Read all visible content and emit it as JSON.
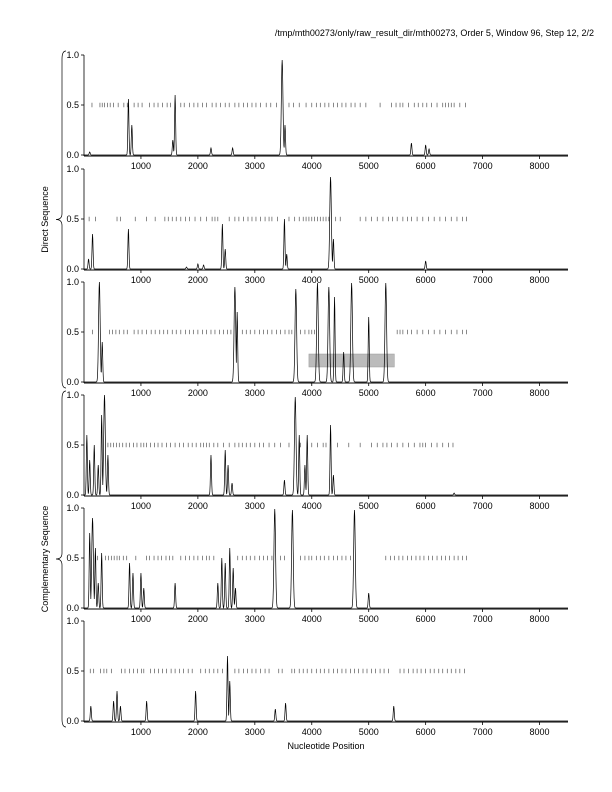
{
  "header": {
    "text": "/tmp/mth00273/only/raw_result_dir/mth00273, Order 5, Window 96, Step 12, 2/2"
  },
  "chart_data": {
    "type": "line",
    "title": "/tmp/mth00273/only/raw_result_dir/mth00273, Order 5, Window 96, Step 12, 2/2",
    "xlabel": "Nucleotide Position",
    "group_labels": [
      "Direct Sequence",
      "Complementary Sequence"
    ],
    "xlim": [
      0,
      8500
    ],
    "ylim": [
      0,
      1.0
    ],
    "x_ticks": [
      1000,
      2000,
      3000,
      4000,
      5000,
      6000,
      7000,
      8000
    ],
    "x_tick_labels": [
      "1000",
      "2000",
      "3000",
      "4000",
      "5000",
      "6000",
      "7000",
      "8000"
    ],
    "y_ticks": [
      0,
      0.5,
      1.0
    ],
    "y_tick_labels": [
      "0.0",
      "0.5",
      "1.0"
    ],
    "stop_codon_level": 0.5,
    "panels": [
      {
        "group": "Direct Sequence",
        "frame": 1,
        "peaks": [
          [
            100,
            0.03
          ],
          [
            780,
            0.56
          ],
          [
            840,
            0.3
          ],
          [
            1600,
            0.6
          ],
          [
            1560,
            0.15
          ],
          [
            2230,
            0.07
          ],
          [
            2610,
            0.07
          ],
          [
            3480,
            0.95
          ],
          [
            3530,
            0.3
          ],
          [
            5750,
            0.12
          ],
          [
            6000,
            0.1
          ],
          [
            6060,
            0.06
          ]
        ],
        "stop_codons": [
          140,
          280,
          320,
          360,
          410,
          460,
          520,
          600,
          700,
          760,
          880,
          950,
          1020,
          1150,
          1230,
          1300,
          1380,
          1460,
          1520,
          1700,
          1760,
          1850,
          1930,
          2000,
          2080,
          2150,
          2250,
          2320,
          2400,
          2480,
          2550,
          2650,
          2720,
          2800,
          2870,
          2950,
          3020,
          3100,
          3200,
          3280,
          3380,
          3600,
          3680,
          3780,
          3900,
          4000,
          4080,
          4150,
          4230,
          4300,
          4380,
          4450,
          4530,
          4600,
          4690,
          4760,
          4850,
          4950,
          5200,
          5400,
          5480,
          5550,
          5600,
          5700,
          5800,
          5870,
          5950,
          6020,
          6100,
          6200,
          6300,
          6350,
          6400,
          6450,
          6500,
          6600,
          6700
        ],
        "orfs": []
      },
      {
        "group": "Direct Sequence",
        "frame": 2,
        "peaks": [
          [
            80,
            0.1
          ],
          [
            150,
            0.35
          ],
          [
            780,
            0.4
          ],
          [
            1800,
            0.02
          ],
          [
            2000,
            0.05
          ],
          [
            2100,
            0.04
          ],
          [
            2430,
            0.45
          ],
          [
            2480,
            0.2
          ],
          [
            3520,
            0.5
          ],
          [
            3560,
            0.15
          ],
          [
            4330,
            0.92
          ],
          [
            4380,
            0.3
          ],
          [
            6000,
            0.08
          ]
        ],
        "stop_codons": [
          90,
          200,
          580,
          640,
          900,
          1100,
          1250,
          1420,
          1480,
          1550,
          1620,
          1700,
          1780,
          1850,
          1950,
          2050,
          2150,
          2250,
          2300,
          2350,
          2550,
          2650,
          2720,
          2800,
          2880,
          2950,
          3020,
          3100,
          3180,
          3250,
          3300,
          3400,
          3600,
          3700,
          3780,
          3850,
          3900,
          3950,
          4000,
          4050,
          4100,
          4150,
          4200,
          4250,
          4300,
          4420,
          4500,
          4850,
          4950,
          5050,
          5150,
          5250,
          5350,
          5420,
          5500,
          5600,
          5680,
          5750,
          5850,
          5950,
          6050,
          6150,
          6250,
          6350,
          6450,
          6550,
          6650,
          6720
        ],
        "orfs": []
      },
      {
        "group": "Direct Sequence",
        "frame": 3,
        "peaks": [
          [
            270,
            1.0
          ],
          [
            320,
            0.4
          ],
          [
            2650,
            0.95
          ],
          [
            2690,
            0.7
          ],
          [
            3720,
            0.93
          ],
          [
            4100,
            0.99
          ],
          [
            4300,
            0.95
          ],
          [
            4400,
            0.85
          ],
          [
            4560,
            0.3
          ],
          [
            4700,
            0.99
          ],
          [
            5000,
            0.65
          ],
          [
            5300,
            0.99
          ]
        ],
        "stop_codons": [
          150,
          450,
          500,
          560,
          620,
          700,
          760,
          880,
          950,
          1020,
          1100,
          1180,
          1250,
          1330,
          1400,
          1470,
          1550,
          1620,
          1700,
          1780,
          1850,
          1920,
          2000,
          2080,
          2150,
          2230,
          2300,
          2380,
          2450,
          2520,
          2580,
          2780,
          2850,
          2920,
          3000,
          3080,
          3150,
          3220,
          3300,
          3380,
          3450,
          3530,
          3600,
          3650,
          3800,
          3880,
          3950,
          4000,
          4050,
          5500,
          5550,
          5600,
          5680,
          5750,
          5850,
          5950,
          6050,
          6150,
          6250,
          6350,
          6450,
          6550,
          6650,
          6720
        ],
        "orfs": [
          [
            3950,
            5450
          ]
        ]
      },
      {
        "group": "Complementary Sequence",
        "frame": 1,
        "peaks": [
          [
            50,
            0.6
          ],
          [
            100,
            0.35
          ],
          [
            180,
            0.5
          ],
          [
            250,
            0.3
          ],
          [
            310,
            0.8
          ],
          [
            360,
            1.0
          ],
          [
            420,
            0.4
          ],
          [
            2230,
            0.4
          ],
          [
            2480,
            0.45
          ],
          [
            2530,
            0.3
          ],
          [
            2600,
            0.12
          ],
          [
            3520,
            0.15
          ],
          [
            3710,
            0.98
          ],
          [
            3780,
            0.6
          ],
          [
            3880,
            0.3
          ],
          [
            3920,
            0.6
          ],
          [
            4330,
            0.7
          ],
          [
            4380,
            0.2
          ],
          [
            6500,
            0.02
          ]
        ],
        "stop_codons": [
          420,
          470,
          520,
          570,
          620,
          680,
          740,
          800,
          870,
          930,
          1000,
          1050,
          1100,
          1170,
          1240,
          1300,
          1370,
          1450,
          1520,
          1600,
          1680,
          1750,
          1830,
          1900,
          1970,
          2050,
          2100,
          2150,
          2200,
          2280,
          2350,
          2450,
          2550,
          2650,
          2720,
          2780,
          2850,
          2920,
          3000,
          3080,
          3150,
          3250,
          3350,
          3450,
          3600,
          3800,
          4000,
          4100,
          4200,
          4250,
          4450,
          4650,
          4850,
          5050,
          5150,
          5250,
          5320,
          5400,
          5500,
          5600,
          5700,
          5800,
          5900,
          5950,
          6000,
          6100,
          6200,
          6300,
          6400,
          6480
        ],
        "orfs": []
      },
      {
        "group": "Complementary Sequence",
        "frame": 2,
        "peaks": [
          [
            100,
            0.75
          ],
          [
            150,
            0.9
          ],
          [
            200,
            0.6
          ],
          [
            250,
            0.25
          ],
          [
            310,
            0.55
          ],
          [
            800,
            0.45
          ],
          [
            860,
            0.35
          ],
          [
            1000,
            0.35
          ],
          [
            1050,
            0.2
          ],
          [
            1600,
            0.25
          ],
          [
            2350,
            0.25
          ],
          [
            2420,
            0.5
          ],
          [
            2480,
            0.45
          ],
          [
            2560,
            0.6
          ],
          [
            2620,
            0.4
          ],
          [
            2660,
            0.2
          ],
          [
            3350,
            0.99
          ],
          [
            3660,
            0.98
          ],
          [
            4750,
            0.98
          ],
          [
            5000,
            0.15
          ]
        ],
        "stop_codons": [
          240,
          380,
          430,
          480,
          530,
          580,
          620,
          690,
          750,
          910,
          1100,
          1150,
          1230,
          1300,
          1360,
          1440,
          1500,
          1560,
          1700,
          1780,
          1850,
          1930,
          2000,
          2080,
          2150,
          2200,
          2280,
          2700,
          2780,
          2850,
          2920,
          3000,
          3080,
          3150,
          3220,
          3300,
          3450,
          3520,
          3800,
          3880,
          3950,
          4000,
          4080,
          4150,
          4220,
          4300,
          4380,
          4450,
          4530,
          4600,
          4680,
          5300,
          5380,
          5450,
          5530,
          5600,
          5680,
          5750,
          5830,
          5900,
          5970,
          6050,
          6120,
          6200,
          6280,
          6350,
          6420,
          6500,
          6570,
          6650,
          6720
        ],
        "orfs": []
      },
      {
        "group": "Complementary Sequence",
        "frame": 3,
        "peaks": [
          [
            120,
            0.15
          ],
          [
            520,
            0.2
          ],
          [
            580,
            0.3
          ],
          [
            640,
            0.15
          ],
          [
            1100,
            0.2
          ],
          [
            1960,
            0.3
          ],
          [
            2520,
            0.65
          ],
          [
            2560,
            0.4
          ],
          [
            3360,
            0.12
          ],
          [
            3540,
            0.18
          ],
          [
            5440,
            0.15
          ]
        ],
        "stop_codons": [
          110,
          170,
          290,
          350,
          400,
          480,
          660,
          720,
          800,
          870,
          940,
          1010,
          1050,
          1170,
          1240,
          1310,
          1380,
          1450,
          1530,
          1600,
          1680,
          1750,
          1830,
          1900,
          2050,
          2130,
          2200,
          2280,
          2350,
          2430,
          2650,
          2720,
          2800,
          2870,
          2950,
          3020,
          3100,
          3180,
          3250,
          3420,
          3480,
          3650,
          3700,
          3780,
          3850,
          3920,
          4000,
          4080,
          4150,
          4220,
          4300,
          4380,
          4450,
          4530,
          4600,
          4680,
          4750,
          4820,
          4900,
          4970,
          5050,
          5120,
          5200,
          5270,
          5350,
          5550,
          5620,
          5700,
          5780,
          5850,
          5920,
          6000,
          6080,
          6150,
          6230,
          6300,
          6380,
          6450,
          6530,
          6600,
          6680
        ],
        "orfs": []
      }
    ]
  }
}
